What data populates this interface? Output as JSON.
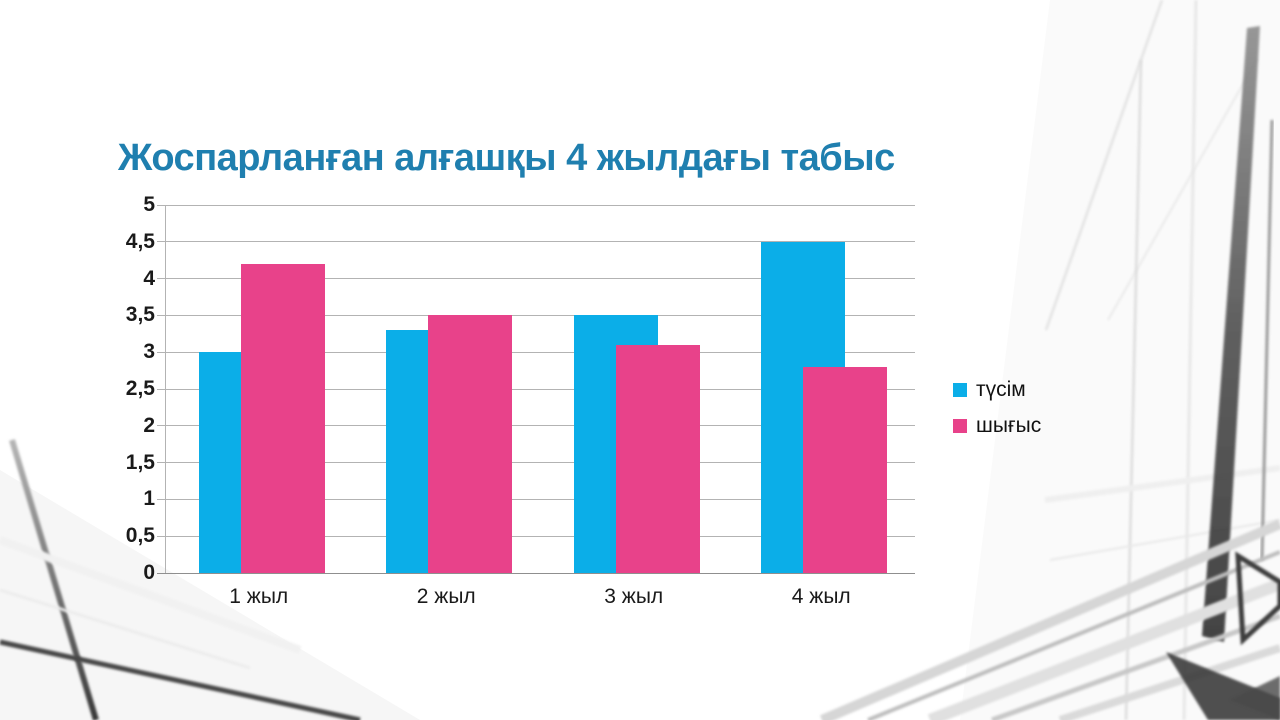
{
  "slide": {
    "title": "Жоспарланған алғашқы 4 жылдағы табыс",
    "title_color": "#1f7faf",
    "background_description": "white abstract architectural photo with window frames and diagonal beams"
  },
  "chart_data": {
    "type": "bar",
    "title": "",
    "xlabel": "",
    "ylabel": "",
    "categories": [
      "1 жыл",
      "2 жыл",
      "3 жыл",
      "4 жыл"
    ],
    "series": [
      {
        "name": "түсім",
        "color": "#0baee8",
        "values": [
          3,
          3.3,
          3.5,
          4.5
        ]
      },
      {
        "name": "шығыс",
        "color": "#e8428a",
        "values": [
          4.2,
          3.5,
          3.1,
          2.8
        ]
      }
    ],
    "ylim": [
      0,
      5
    ],
    "ytick_step": 0.5,
    "ytick_labels": [
      "0",
      "0,5",
      "1",
      "1,5",
      "2",
      "2,5",
      "3",
      "3,5",
      "4",
      "4,5",
      "5"
    ],
    "grid": true,
    "gridline_color": "#b3b3b3",
    "legend_position": "right"
  }
}
